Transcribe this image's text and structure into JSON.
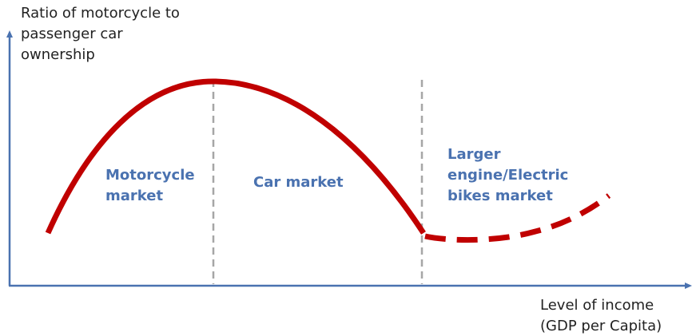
{
  "y_axis_label": [
    "Ratio of  motorcycle to",
    "passenger car",
    "ownership"
  ],
  "x_axis_label": [
    "Level of income",
    "(GDP per Capita)"
  ],
  "regions": [
    {
      "label": [
        "Motorcycle",
        "market"
      ]
    },
    {
      "label": [
        "Car market"
      ]
    },
    {
      "label": [
        "Larger",
        "engine/Electric",
        "bikes market"
      ]
    }
  ]
}
